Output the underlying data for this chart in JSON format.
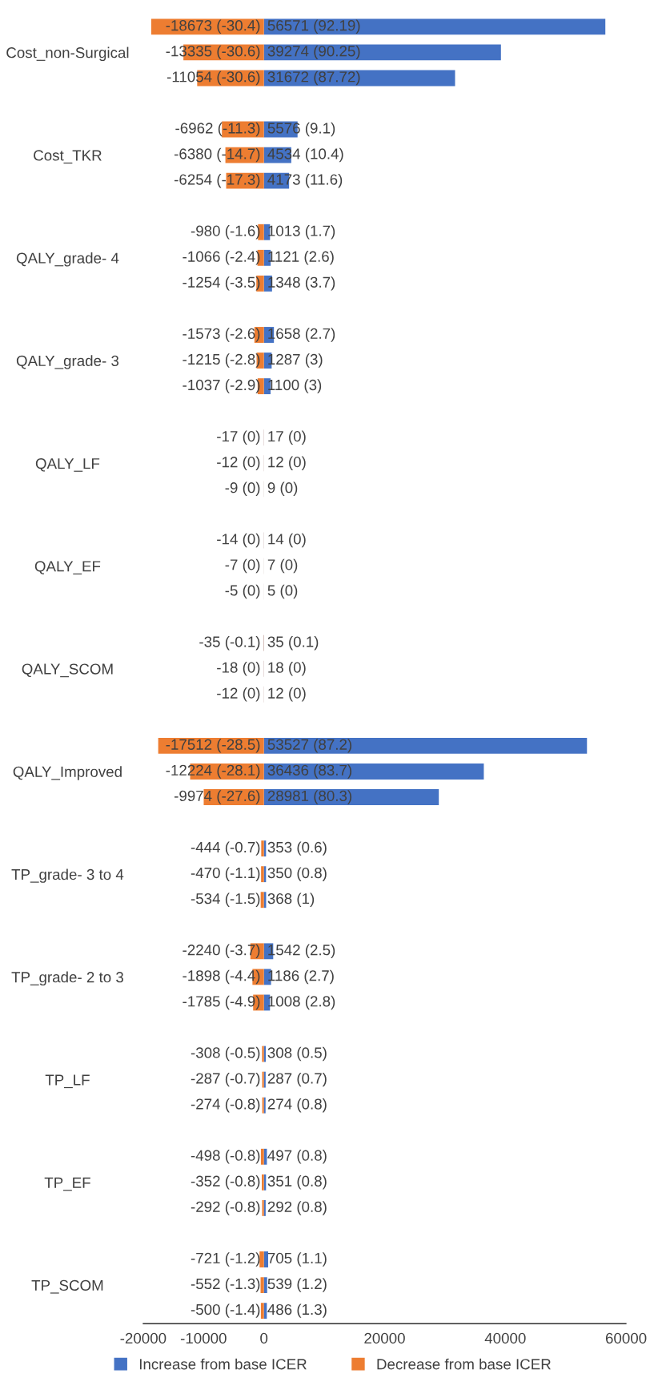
{
  "chart_data": {
    "type": "bar",
    "orientation": "horizontal",
    "categories": [
      null,
      "Cost_non-Surgical",
      null,
      null,
      null,
      "Cost_TKR",
      null,
      null,
      null,
      "QALY_grade- 4",
      null,
      null,
      null,
      "QALY_grade- 3",
      null,
      null,
      null,
      "QALY_LF",
      null,
      null,
      null,
      "QALY_EF",
      null,
      null,
      null,
      "QALY_SCOM",
      null,
      null,
      null,
      "QALY_Improved",
      null,
      null,
      null,
      "TP_grade- 3 to 4",
      null,
      null,
      null,
      "TP_grade- 2 to 3",
      null,
      null,
      null,
      "TP_LF",
      null,
      null,
      null,
      "TP_EF",
      null,
      null,
      null,
      "TP_SCOM",
      null
    ],
    "series": [
      {
        "name": "Increase from base ICER",
        "color": "#4472c4",
        "values": [
          56571,
          39274,
          31672,
          null,
          5576,
          4534,
          4173,
          null,
          1013,
          1121,
          1348,
          null,
          1658,
          1287,
          1100,
          null,
          17,
          12,
          9,
          null,
          14,
          7,
          5,
          null,
          35,
          18,
          12,
          null,
          53527,
          36436,
          28981,
          null,
          353,
          350,
          368,
          null,
          1542,
          1186,
          1008,
          null,
          308,
          287,
          274,
          null,
          497,
          351,
          292,
          null,
          705,
          539,
          486
        ],
        "value_labels": [
          "56571 (92.19)",
          "39274 (90.25)",
          "31672 (87.72)",
          null,
          "5576 (9.1)",
          "4534 (10.4)",
          "4173 (11.6)",
          null,
          "1013 (1.7)",
          "1121 (2.6)",
          "1348 (3.7)",
          null,
          "1658 (2.7)",
          "1287 (3)",
          "1100 (3)",
          null,
          "17 (0)",
          "12 (0)",
          "9 (0)",
          null,
          "14 (0)",
          "7 (0)",
          "5 (0)",
          null,
          "35 (0.1)",
          "18 (0)",
          "12 (0)",
          null,
          "53527 (87.2)",
          "36436 (83.7)",
          "28981 (80.3)",
          null,
          "353 (0.6)",
          "350 (0.8)",
          "368 (1)",
          null,
          "1542 (2.5)",
          "1186 (2.7)",
          "1008 (2.8)",
          null,
          "308 (0.5)",
          "287 (0.7)",
          "274 (0.8)",
          null,
          "497 (0.8)",
          "351 (0.8)",
          "292 (0.8)",
          null,
          "705 (1.1)",
          "539 (1.2)",
          "486 (1.3)"
        ]
      },
      {
        "name": "Decrease from base ICER",
        "color": "#ed7d31",
        "values": [
          -18673,
          -13335,
          -11054,
          null,
          -6962,
          -6380,
          -6254,
          null,
          -980,
          -1066,
          -1254,
          null,
          -1573,
          -1215,
          -1037,
          null,
          -17,
          -12,
          -9,
          null,
          -14,
          -7,
          -5,
          null,
          -35,
          -18,
          -12,
          null,
          -17512,
          -12224,
          -9974,
          null,
          -444,
          -470,
          -534,
          null,
          -2240,
          -1898,
          -1785,
          null,
          -308,
          -287,
          -274,
          null,
          -498,
          -352,
          -292,
          null,
          -721,
          -552,
          -500
        ],
        "value_labels": [
          "-18673 (-30.4)",
          "-13335 (-30.6)",
          "-11054 (-30.6)",
          null,
          "-6962 (-11.3)",
          "-6380 (-14.7)",
          "-6254 (-17.3)",
          null,
          "-980 (-1.6)",
          "-1066 (-2.4)",
          "-1254 (-3.5)",
          null,
          "-1573 (-2.6)",
          "-1215 (-2.8)",
          "-1037 (-2.9)",
          null,
          "-17 (0)",
          "-12 (0)",
          "-9 (0)",
          null,
          "-14 (0)",
          "-7 (0)",
          "-5 (0)",
          null,
          "-35 (-0.1)",
          "-18 (0)",
          "-12 (0)",
          null,
          "-17512 (-28.5)",
          "-12224 (-28.1)",
          "-9974 (-27.6)",
          null,
          "-444 (-0.7)",
          "-470 (-1.1)",
          "-534 (-1.5)",
          null,
          "-2240 (-3.7)",
          "-1898 (-4.4)",
          "-1785 (-4.9)",
          null,
          "-308 (-0.5)",
          "-287 (-0.7)",
          "-274 (-0.8)",
          null,
          "-498 (-0.8)",
          "-352 (-0.8)",
          "-292 (-0.8)",
          null,
          "-721 (-1.2)",
          "-552 (-1.3)",
          "-500 (-1.4)"
        ]
      }
    ],
    "xlim": [
      -20000,
      60000
    ],
    "xticks": [
      -20000,
      -10000,
      0,
      20000,
      40000,
      60000
    ],
    "grid": false,
    "stacked": true,
    "legend": "bottom"
  }
}
